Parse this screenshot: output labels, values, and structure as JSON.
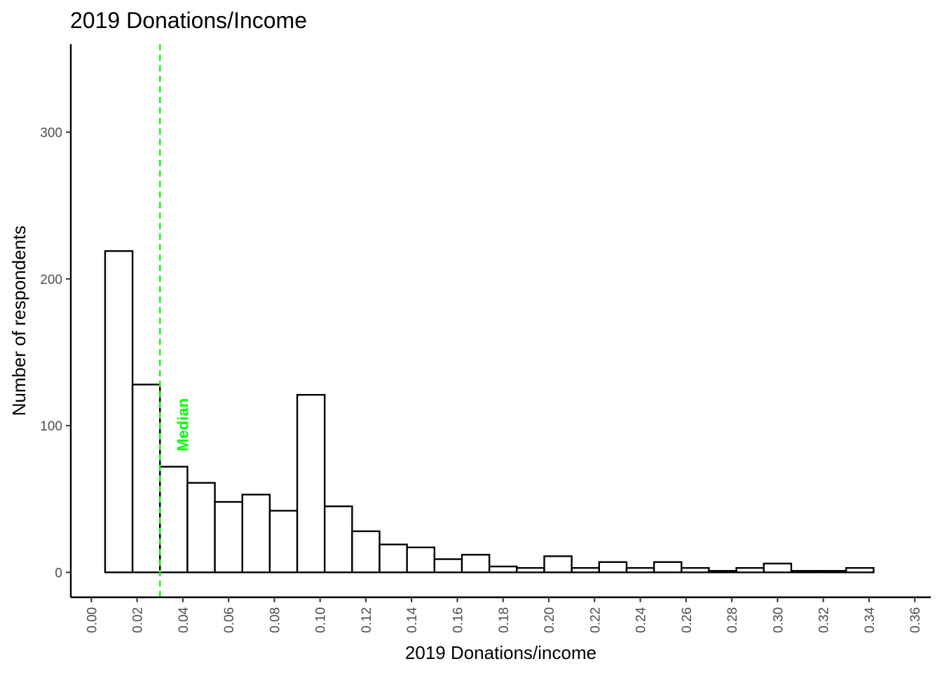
{
  "chart_data": {
    "type": "bar",
    "title": "2019 Donations/Income",
    "xlabel": "2019 Donations/income",
    "ylabel": "Number of respondents",
    "xlim": [
      -0.009,
      0.367
    ],
    "ylim": [
      -17,
      360
    ],
    "x_ticks": [
      "0.00",
      "0.02",
      "0.04",
      "0.06",
      "0.08",
      "0.10",
      "0.12",
      "0.14",
      "0.16",
      "0.18",
      "0.20",
      "0.22",
      "0.24",
      "0.26",
      "0.28",
      "0.30",
      "0.32",
      "0.34",
      "0.36"
    ],
    "y_ticks": [
      "0",
      "100",
      "200",
      "300"
    ],
    "bin_width": 0.012,
    "bin_start": 0.006,
    "values": [
      219,
      128,
      72,
      61,
      48,
      53,
      42,
      121,
      45,
      28,
      19,
      17,
      9,
      12,
      4,
      3,
      11,
      3,
      7,
      3,
      7,
      3,
      1,
      3,
      6,
      1,
      1,
      3
    ],
    "bar_fill": "#ffffff",
    "bar_stroke": "#000000",
    "grid": false,
    "median": {
      "value": 0.03,
      "label": "Median",
      "color": "#00ff00"
    }
  }
}
